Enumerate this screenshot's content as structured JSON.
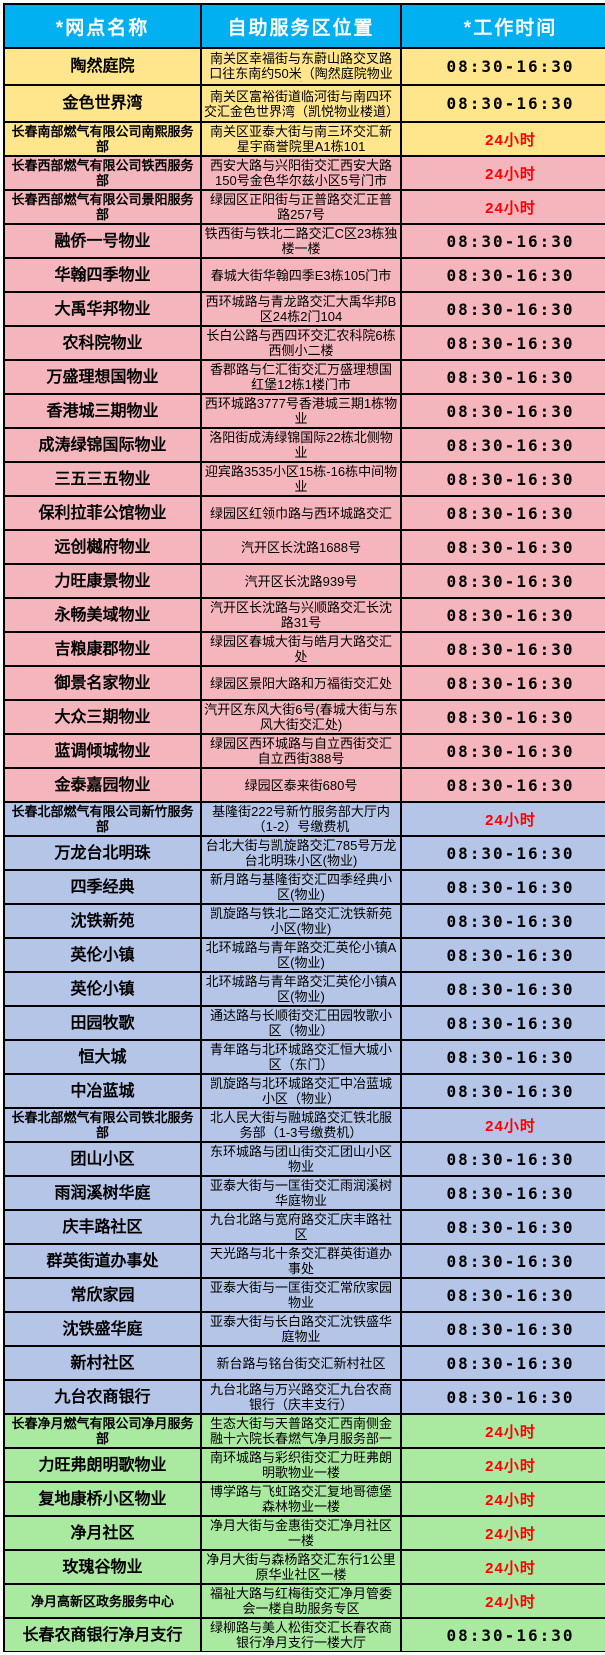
{
  "table": {
    "columns": [
      "*网点名称",
      "自助服务区位置",
      "*工作时间"
    ],
    "time_24h_label": "24小时",
    "rows": [
      {
        "name": "陶然庭院",
        "location": "南关区幸福街与东蔚山路交叉路口往东南约50米（陶然庭院物业大",
        "time": "08:30-16:30",
        "group": "yellow"
      },
      {
        "name": "金色世界湾",
        "location": "南关区富裕街道临河街与南四环交汇金色世界湾（凯悦物业楼道）",
        "time": "08:30-16:30",
        "group": "yellow"
      },
      {
        "name": "长春南部燃气有限公司南熙服务部",
        "location": "南关区亚泰大街与南三环交汇新星宇商誉院里A1栋101",
        "time": "24小时",
        "group": "yellow"
      },
      {
        "name": "长春西部燃气有限公司铁西服务部",
        "location": "西安大路与兴阳街交汇西安大路150号金色华尔兹小区5号门市",
        "time": "24小时",
        "group": "pink"
      },
      {
        "name": "长春西部燃气有限公司景阳服务部",
        "location": "绿园区正阳街与正普路交汇正普路257号",
        "time": "24小时",
        "group": "pink"
      },
      {
        "name": "融侨一号物业",
        "location": "铁西街与铁北二路交汇C区23栋独楼一楼",
        "time": "08:30-16:30",
        "group": "pink"
      },
      {
        "name": "华翰四季物业",
        "location": "春城大街华翰四季E3栋105门市",
        "time": "08:30-16:30",
        "group": "pink"
      },
      {
        "name": "大禹华邦物业",
        "location": "西环城路与青龙路交汇大禹华邦B区24栋2门104",
        "time": "08:30-16:30",
        "group": "pink"
      },
      {
        "name": "农科院物业",
        "location": "长白公路与西四环交汇农科院6栋西侧小二楼",
        "time": "08:30-16:30",
        "group": "pink"
      },
      {
        "name": "万盛理想国物业",
        "location": "香郡路与仁汇街交汇万盛理想国红堡12栋1楼门市",
        "time": "08:30-16:30",
        "group": "pink"
      },
      {
        "name": "香港城三期物业",
        "location": "西环城路3777号香港城三期1栋物业",
        "time": "08:30-16:30",
        "group": "pink"
      },
      {
        "name": "成涛绿锦国际物业",
        "location": "洛阳街成涛绿锦国际22栋北侧物业",
        "time": "08:30-16:30",
        "group": "pink"
      },
      {
        "name": "三五三五物业",
        "location": "迎宾路3535小区15栋-16栋中间物业",
        "time": "08:30-16:30",
        "group": "pink"
      },
      {
        "name": "保利拉菲公馆物业",
        "location": "绿园区红领巾路与西环城路交汇",
        "time": "08:30-16:30",
        "group": "pink"
      },
      {
        "name": "远创樾府物业",
        "location": "汽开区长沈路1688号",
        "time": "08:30-16:30",
        "group": "pink"
      },
      {
        "name": "力旺康景物业",
        "location": "汽开区长沈路939号",
        "time": "08:30-16:30",
        "group": "pink"
      },
      {
        "name": "永畅美域物业",
        "location": "汽开区长沈路与兴顺路交汇长沈路31号",
        "time": "08:30-16:30",
        "group": "pink"
      },
      {
        "name": "吉粮康郡物业",
        "location": "绿园区春城大街与皓月大路交汇处",
        "time": "08:30-16:30",
        "group": "pink"
      },
      {
        "name": "御景名家物业",
        "location": "绿园区景阳大路和万福街交汇处",
        "time": "08:30-16:30",
        "group": "pink"
      },
      {
        "name": "大众三期物业",
        "location": "汽开区东风大街6号(春城大街与东风大街交汇处)",
        "time": "08:30-16:30",
        "group": "pink"
      },
      {
        "name": "蓝调倾城物业",
        "location": "绿园区西环城路与自立西街交汇自立西街388号",
        "time": "08:30-16:30",
        "group": "pink"
      },
      {
        "name": "金泰嘉园物业",
        "location": "绿园区泰来街680号",
        "time": "08:30-16:30",
        "group": "pink"
      },
      {
        "name": "长春北部燃气有限公司新竹服务部",
        "location": "基隆街222号新竹服务部大厅内（1-2）号缴费机",
        "time": "24小时",
        "group": "blue"
      },
      {
        "name": "万龙台北明珠",
        "location": "台北大街与凯旋路交汇785号万龙台北明珠小区(物业)",
        "time": "08:30-16:30",
        "group": "blue"
      },
      {
        "name": "四季经典",
        "location": "新月路与基隆街交汇四季经典小区(物业)",
        "time": "08:30-16:30",
        "group": "blue"
      },
      {
        "name": "沈铁新苑",
        "location": "凯旋路与铁北二路交汇沈铁新苑小区(物业)",
        "time": "08:30-16:30",
        "group": "blue"
      },
      {
        "name": "英伦小镇",
        "location": "北环城路与青年路交汇英伦小镇A区(物业)",
        "time": "08:30-16:30",
        "group": "blue"
      },
      {
        "name": "英伦小镇",
        "location": "北环城路与青年路交汇英伦小镇A区(物业)",
        "time": "08:30-16:30",
        "group": "blue"
      },
      {
        "name": "田园牧歌",
        "location": "通达路与长顺街交汇田园牧歌小区（物业）",
        "time": "08:30-16:30",
        "group": "blue"
      },
      {
        "name": "恒大城",
        "location": "青年路与北环城路交汇恒大城小区（东门）",
        "time": "08:30-16:30",
        "group": "blue"
      },
      {
        "name": "中冶蓝城",
        "location": "凯旋路与北环城路交汇中冶蓝城小区（物业）",
        "time": "08:30-16:30",
        "group": "blue"
      },
      {
        "name": "长春北部燃气有限公司铁北服务部",
        "location": "北人民大街与融城路交汇铁北服务部（1-3号缴费机）",
        "time": "24小时",
        "group": "blue"
      },
      {
        "name": "团山小区",
        "location": "东环城路与团山街交汇团山小区物业",
        "time": "08:30-16:30",
        "group": "blue"
      },
      {
        "name": "雨润溪树华庭",
        "location": "亚泰大街与一匡街交汇雨润溪树华庭物业",
        "time": "08:30-16:30",
        "group": "blue"
      },
      {
        "name": "庆丰路社区",
        "location": "九台北路与宽府路交汇庆丰路社区",
        "time": "08:30-16:30",
        "group": "blue"
      },
      {
        "name": "群英街道办事处",
        "location": "天光路与北十条交汇群英街道办事处",
        "time": "08:30-16:30",
        "group": "blue"
      },
      {
        "name": "常欣家园",
        "location": "亚泰大街与一匡街交汇常欣家园物业",
        "time": "08:30-16:30",
        "group": "blue"
      },
      {
        "name": "沈铁盛华庭",
        "location": "亚泰大街与长白路交汇沈铁盛华庭物业",
        "time": "08:30-16:30",
        "group": "blue"
      },
      {
        "name": "新村社区",
        "location": "新台路与铭台街交汇新村社区",
        "time": "08:30-16:30",
        "group": "blue"
      },
      {
        "name": "九台农商银行",
        "location": "九台北路与万兴路交汇九台农商银行（庆丰支行）",
        "time": "08:30-16:30",
        "group": "blue"
      },
      {
        "name": "长春净月燃气有限公司净月服务部",
        "location": "生态大街与天普路交汇西南侧金融十六院长春燃气净月服务部一楼",
        "time": "24小时",
        "group": "green"
      },
      {
        "name": "力旺弗朗明歌物业",
        "location": "南环城路与彩织街交汇力旺弗朗明歌物业一楼",
        "time": "24小时",
        "group": "green"
      },
      {
        "name": "复地康桥小区物业",
        "location": "博学路与飞虹路交汇复地哥德堡森林物业一楼",
        "time": "24小时",
        "group": "green"
      },
      {
        "name": "净月社区",
        "location": "净月大街与金惠街交汇净月社区一楼",
        "time": "24小时",
        "group": "green"
      },
      {
        "name": "玫瑰谷物业",
        "location": "净月大街与森杨路交汇东行1公里原华业社区一楼",
        "time": "24小时",
        "group": "green"
      },
      {
        "name": "净月高新区政务服务中心",
        "location": "福祉大路与红梅街交汇净月管委会一楼自助服务专区",
        "time": "24小时",
        "group": "green"
      },
      {
        "name": "长春农商银行净月支行",
        "location": "绿柳路与美人松街交汇长春农商银行净月支行一楼大厅",
        "time": "08:30-16:30",
        "group": "green"
      }
    ]
  },
  "colors": {
    "header_bg": "#00B0F0",
    "header_text": "#FFFFFF",
    "group_yellow": "#FFE58C",
    "group_pink": "#F5B5BD",
    "group_blue": "#B4C5E8",
    "group_green": "#A9E9A0",
    "time_24h": "#FF0000",
    "time_regular": "#000000",
    "border": "#000000"
  }
}
